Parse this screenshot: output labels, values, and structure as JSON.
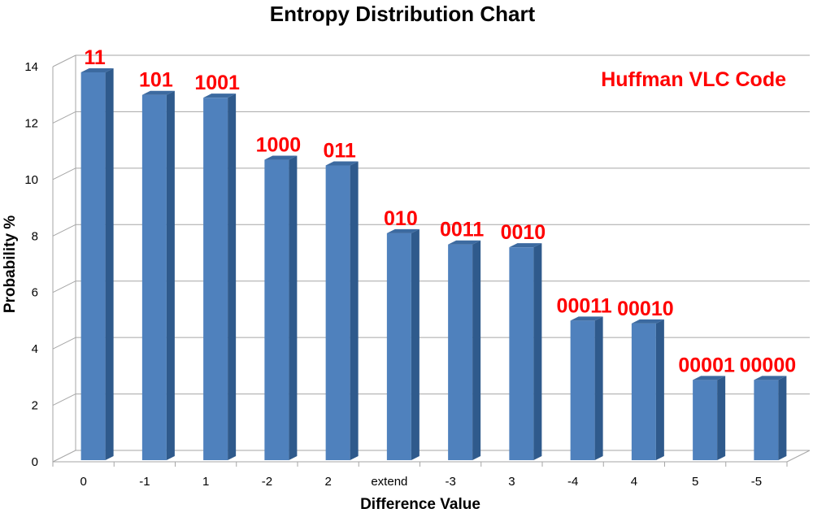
{
  "chart_data": {
    "type": "bar",
    "title": "Entropy Distribution Chart",
    "xlabel": "Difference Value",
    "ylabel": "Probability %",
    "annotation": "Huffman VLC Code",
    "categories": [
      "0",
      "-1",
      "1",
      "-2",
      "2",
      "extend",
      "-3",
      "3",
      "-4",
      "4",
      "5",
      "-5"
    ],
    "values": [
      13.8,
      13.0,
      12.9,
      10.7,
      10.5,
      8.1,
      7.7,
      7.6,
      5.0,
      4.9,
      2.9,
      2.9
    ],
    "data_labels": [
      "11",
      "101",
      "1001",
      "1000",
      "011",
      "010",
      "0011",
      "0010",
      "00011",
      "00010",
      "00001",
      "00000"
    ],
    "ylim": [
      0,
      14
    ],
    "yticks": [
      "0",
      "2",
      "4",
      "6",
      "8",
      "10",
      "12",
      "14"
    ],
    "grid": true,
    "colors": {
      "bar_front": "#4F81BD",
      "bar_side": "#2F5A8C",
      "bar_top": "#3C6AA0",
      "data_label": "#FF0000",
      "annotation": "#FF0000",
      "grid": "#A6A6A6"
    }
  }
}
